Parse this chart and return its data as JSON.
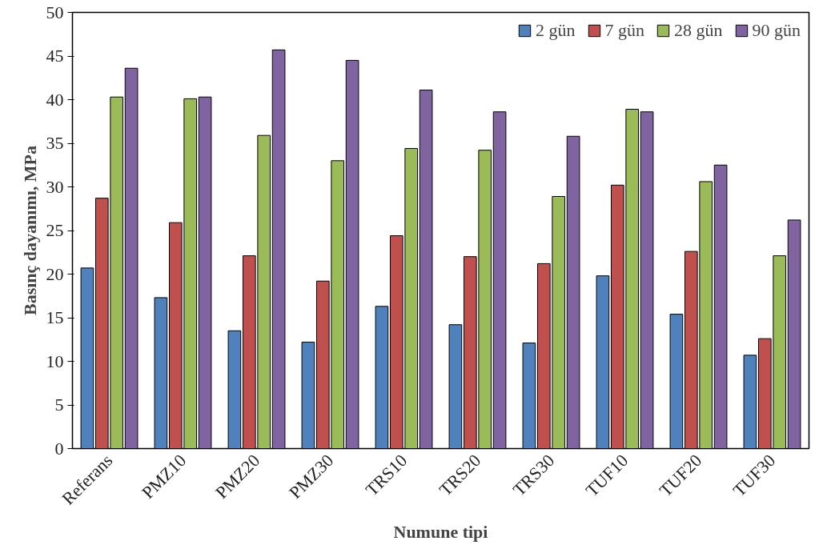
{
  "chart_data": {
    "type": "bar",
    "xlabel": "Numune tipi",
    "ylabel": "Basınç dayanımı, MPa",
    "categories": [
      "Referans",
      "PMZ10",
      "PMZ20",
      "PMZ30",
      "TRS10",
      "TRS20",
      "TRS30",
      "TUF10",
      "TUF20",
      "TUF30"
    ],
    "series": [
      {
        "name": "2 gün",
        "color": "#4f81bd",
        "values": [
          20.7,
          17.3,
          13.5,
          12.2,
          16.3,
          14.2,
          12.1,
          19.8,
          15.4,
          10.7
        ]
      },
      {
        "name": "7 gün",
        "color": "#c0504d",
        "values": [
          28.7,
          25.9,
          22.1,
          19.2,
          24.4,
          22.0,
          21.2,
          30.2,
          22.6,
          12.6
        ]
      },
      {
        "name": "28 gün",
        "color": "#9bbb59",
        "values": [
          40.3,
          40.1,
          35.9,
          33.0,
          34.4,
          34.2,
          28.9,
          38.9,
          30.6,
          22.1
        ]
      },
      {
        "name": "90 gün",
        "color": "#8064a2",
        "values": [
          43.6,
          40.3,
          45.7,
          44.5,
          41.1,
          38.6,
          35.8,
          38.6,
          32.5,
          26.2
        ]
      }
    ],
    "ylim": [
      0,
      50
    ],
    "yticks": [
      0,
      5,
      10,
      15,
      20,
      25,
      30,
      35,
      40,
      45,
      50
    ],
    "grid": false,
    "legend": "top right"
  }
}
